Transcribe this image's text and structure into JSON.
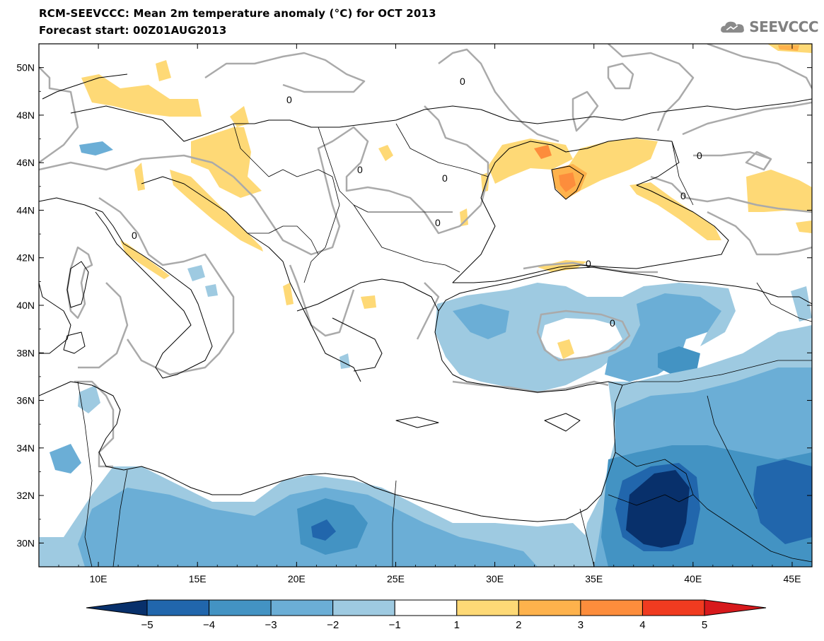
{
  "header": {
    "title": "RCM-SEEVCCC: Mean 2m temperature anomaly (°C) for OCT 2013",
    "subtitle": "Forecast start: 00Z01AUG2013",
    "logo_text": "SEEVCCC"
  },
  "map": {
    "lon_range": [
      7,
      46
    ],
    "lat_range": [
      29,
      51
    ],
    "lon_ticks": [
      "10E",
      "15E",
      "20E",
      "25E",
      "30E",
      "35E",
      "40E",
      "45E"
    ],
    "lat_ticks": [
      "50N",
      "48N",
      "46N",
      "44N",
      "42N",
      "40N",
      "38N",
      "36N",
      "34N",
      "32N",
      "30N"
    ],
    "contour_label": "0",
    "colors": {
      "land_border": "#000000",
      "zero_contour": "#aaaaaa",
      "neg5": "#08306b",
      "neg4": "#2166ac",
      "neg3": "#4393c3",
      "neg2": "#6baed6",
      "neg1": "#9ecae1",
      "pos1": "#fed976",
      "pos2": "#feb24c",
      "pos3": "#fd8d3c",
      "pos4": "#f03b20",
      "pos5": "#d7191c"
    }
  },
  "colorbar": {
    "levels": [
      "−5",
      "−4",
      "−3",
      "−2",
      "−1",
      "1",
      "2",
      "3",
      "4",
      "5"
    ],
    "colors": [
      "#2166ac",
      "#4393c3",
      "#6baed6",
      "#9ecae1",
      "#ffffff",
      "#fed976",
      "#feb24c",
      "#fd8d3c",
      "#f03b20"
    ],
    "under_color": "#08306b",
    "over_color": "#d7191c"
  }
}
